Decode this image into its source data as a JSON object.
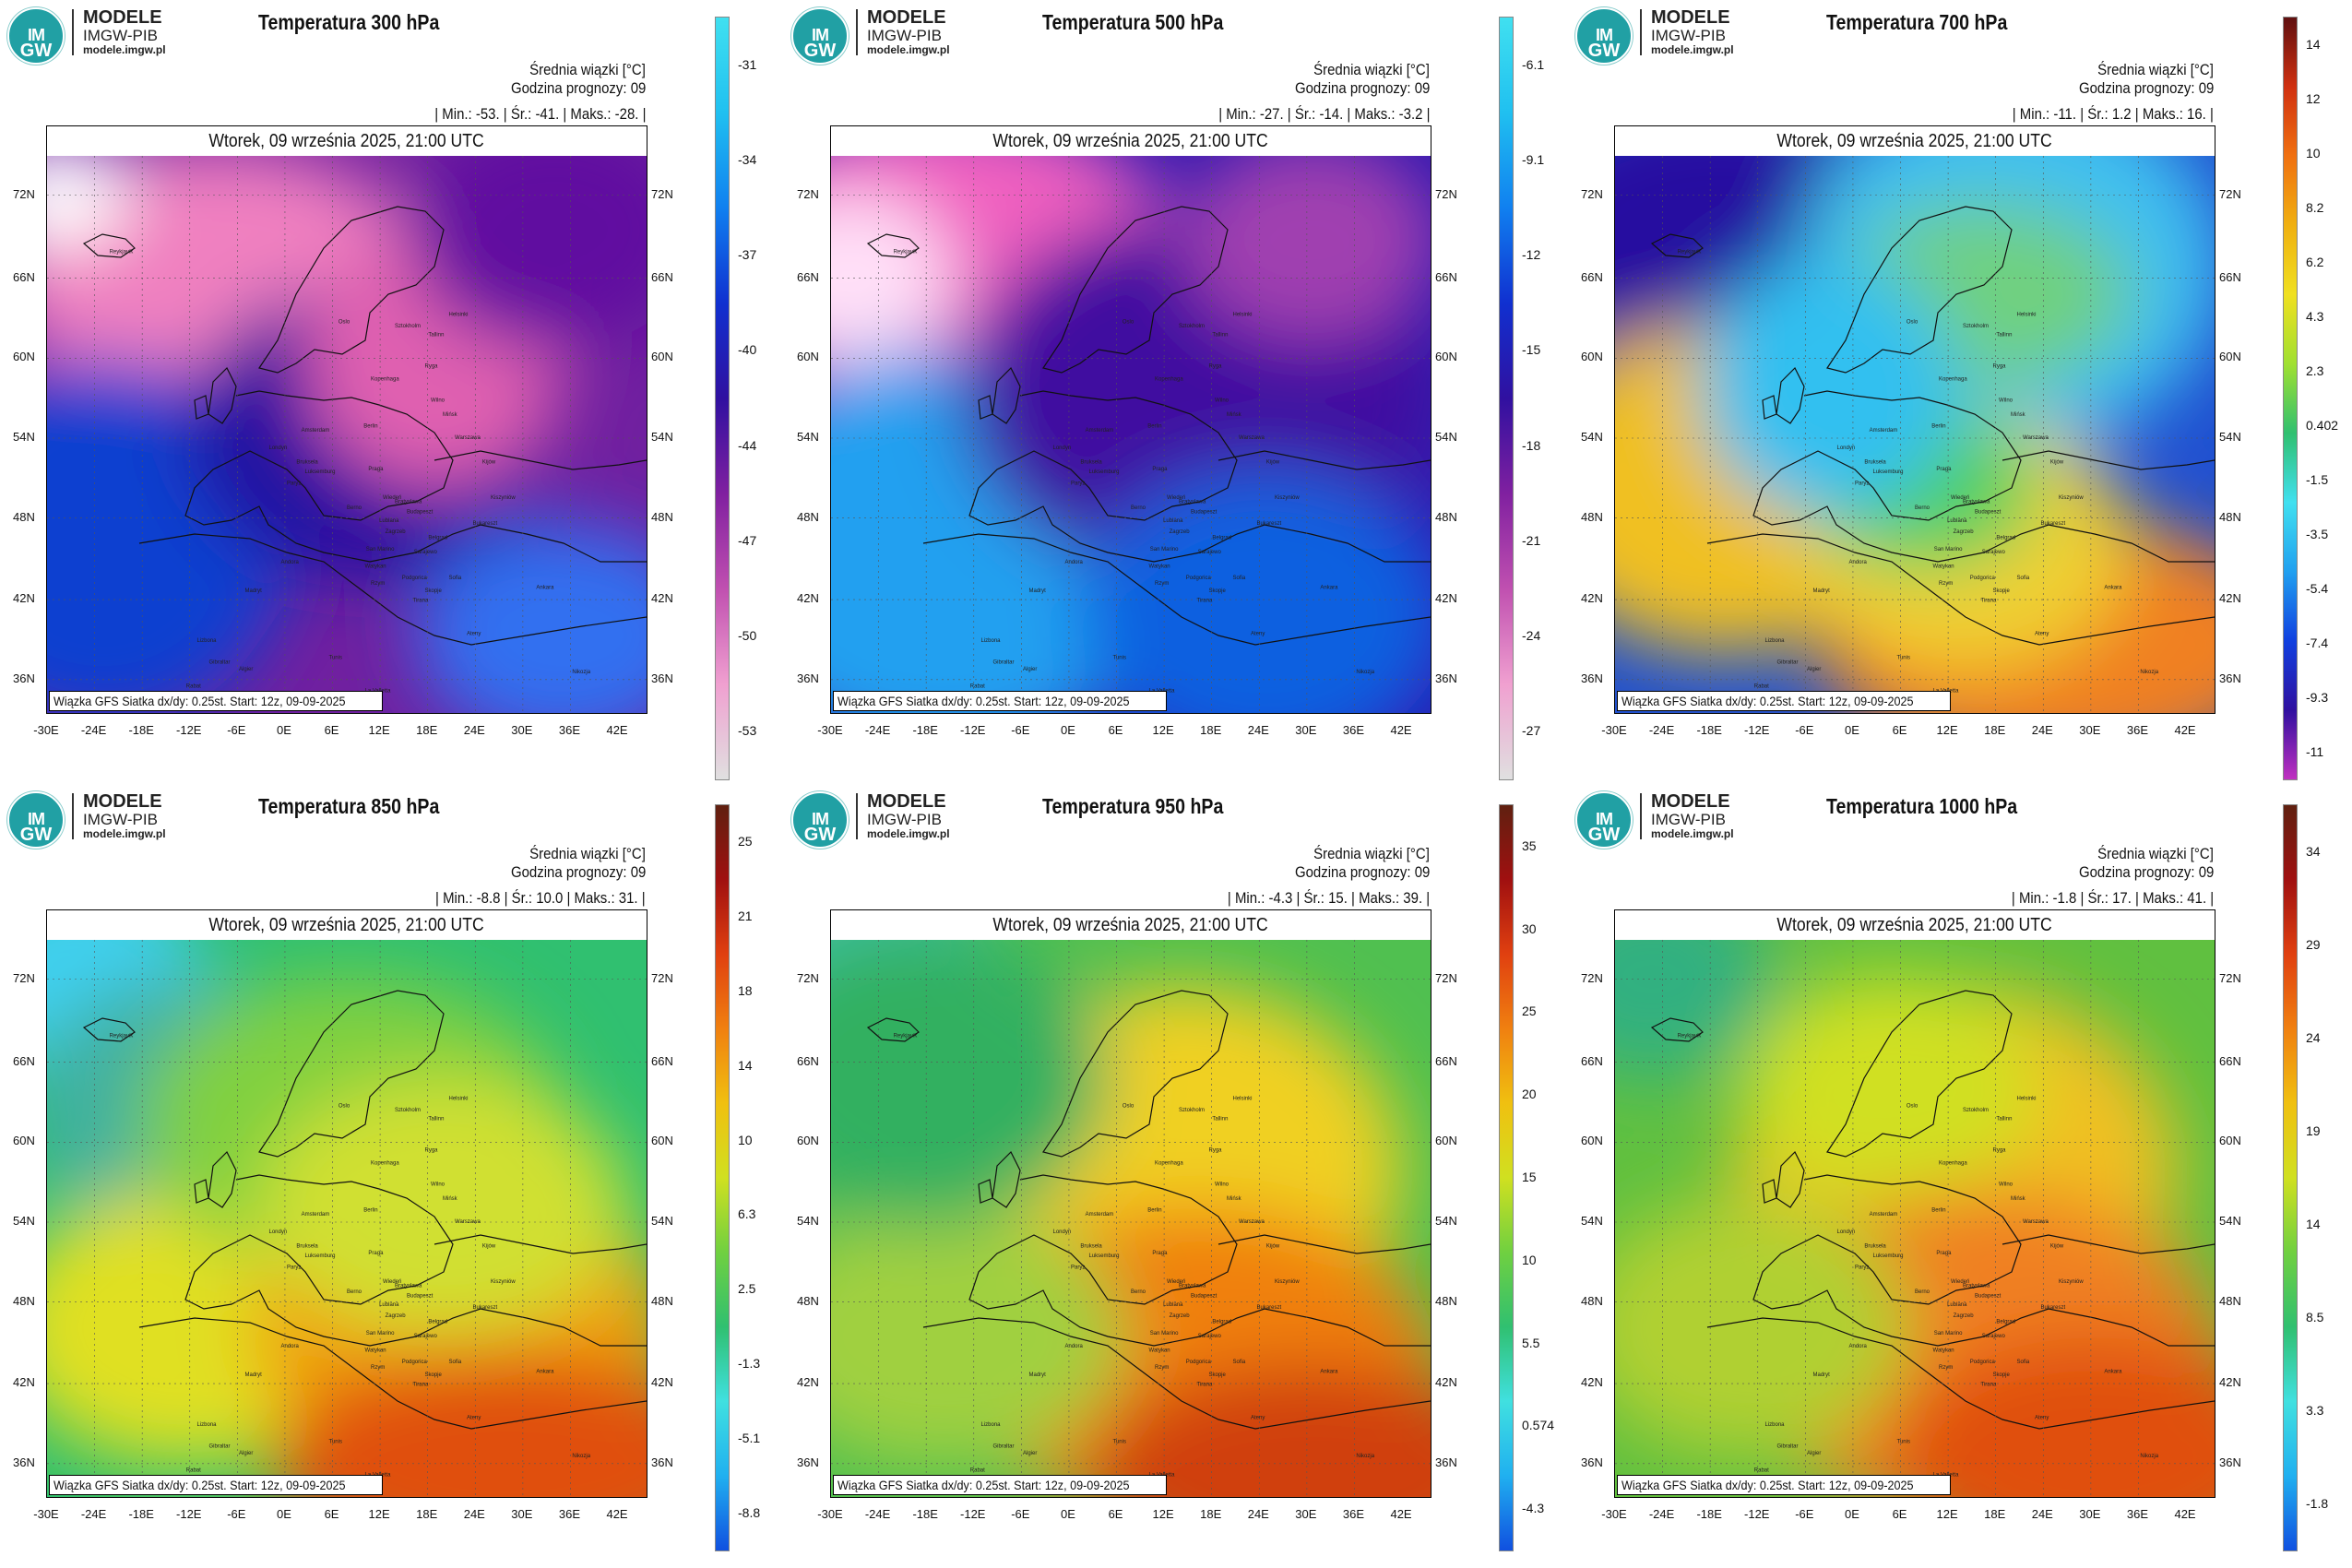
{
  "logo": {
    "line1": "MODELE",
    "line2": "IMGW-PIB",
    "line3": "modele.imgw.pl",
    "badge_top": "IM",
    "badge_bottom": "GW"
  },
  "common": {
    "mean_label": "Średnia wiązki [°C]",
    "forecast_hour": "Godzina prognozy: 09",
    "date": "Wtorek, 09 września 2025, 21:00 UTC",
    "footer": "Wiązka GFS Siatka dx/dy: 0.25st. Start: 12z, 09-09-2025",
    "lat_ticks": [
      "72N",
      "66N",
      "60N",
      "54N",
      "48N",
      "42N",
      "36N"
    ],
    "lon_ticks": [
      "-30E",
      "-24E",
      "-18E",
      "-12E",
      "-6E",
      "0E",
      "6E",
      "12E",
      "18E",
      "24E",
      "30E",
      "36E",
      "42E"
    ],
    "cities": [
      "Reykjavik",
      "Oslo",
      "Helsinki",
      "Sztokholm",
      "Tallinn",
      "Kopenhaga",
      "Ryga",
      "Wilno",
      "Mińsk",
      "Amsterdam",
      "Berlin",
      "Warszawa",
      "Londyn",
      "Bruksela",
      "Luksemburg",
      "Paryż",
      "Praga",
      "Kijów",
      "Wiedeń",
      "Bratysława",
      "Budapeszt",
      "Kiszyniów",
      "Berno",
      "Lublana",
      "Zagrzeb",
      "Belgrad",
      "Sarajewo",
      "Bukareszt",
      "Andora",
      "San Marino",
      "Watykan",
      "Podgorica",
      "Sofia",
      "Skopje",
      "Tirana",
      "Rzym",
      "Madryt",
      "Lizbona",
      "Ankara",
      "Ateny",
      "Gibraltar",
      "Algier",
      "Tunis",
      "Rabat",
      "La Valletta",
      "Nikozja"
    ]
  },
  "panels": [
    {
      "title": "Temperatura 300 hPa",
      "stats": "| Min.: -53. | Śr.: -41. | Maks.: -28. |",
      "colorbar": {
        "labels": [
          "-31",
          "-34",
          "-37",
          "-40",
          "-44",
          "-47",
          "-50",
          "-53"
        ],
        "min": -53,
        "max": -28
      }
    },
    {
      "title": "Temperatura 500 hPa",
      "stats": "| Min.: -27. | Śr.: -14. | Maks.: -3.2 |",
      "colorbar": {
        "labels": [
          "-6.1",
          "-9.1",
          "-12",
          "-15",
          "-18",
          "-21",
          "-24",
          "-27"
        ],
        "min": -27,
        "max": -3.2
      }
    },
    {
      "title": "Temperatura 700 hPa",
      "stats": "| Min.: -11. | Śr.: 1.2 | Maks.: 16. |",
      "colorbar": {
        "labels": [
          "14",
          "12",
          "10",
          "8.2",
          "6.2",
          "4.3",
          "2.3",
          "0.402",
          "-1.5",
          "-3.5",
          "-5.4",
          "-7.4",
          "-9.3",
          "-11"
        ],
        "min": -11,
        "max": 16
      }
    },
    {
      "title": "Temperatura 850 hPa",
      "stats": "| Min.: -8.8 | Śr.: 10.0 | Maks.: 31. |",
      "colorbar": {
        "labels": [
          "25",
          "21",
          "18",
          "14",
          "10",
          "6.3",
          "2.5",
          "-1.3",
          "-5.1",
          "-8.8"
        ],
        "min": -8.8,
        "max": 31
      }
    },
    {
      "title": "Temperatura 950 hPa",
      "stats": "| Min.: -4.3 | Śr.: 15. | Maks.: 39. |",
      "colorbar": {
        "labels": [
          "35",
          "30",
          "25",
          "20",
          "15",
          "10",
          "5.5",
          "0.574",
          "-4.3"
        ],
        "min": -4.3,
        "max": 39
      }
    },
    {
      "title": "Temperatura 1000 hPa",
      "stats": "| Min.: -1.8 | Śr.: 17. | Maks.: 41. |",
      "colorbar": {
        "labels": [
          "34",
          "29",
          "24",
          "19",
          "14",
          "8.5",
          "3.3",
          "-1.8"
        ],
        "min": -1.8,
        "max": 41
      }
    }
  ],
  "colors": {
    "cold_map": [
      "#e0e0e0",
      "#f0a0d0",
      "#c050b0",
      "#8020a0",
      "#3010a0",
      "#1030d0",
      "#1080f0",
      "#20c0f0",
      "#40e0f0"
    ],
    "warm_map": [
      "#1050e0",
      "#20b0f0",
      "#40e0e0",
      "#30c070",
      "#70d040",
      "#d0e020",
      "#f0c010",
      "#f08010",
      "#e04010",
      "#a01010",
      "#602010"
    ]
  }
}
